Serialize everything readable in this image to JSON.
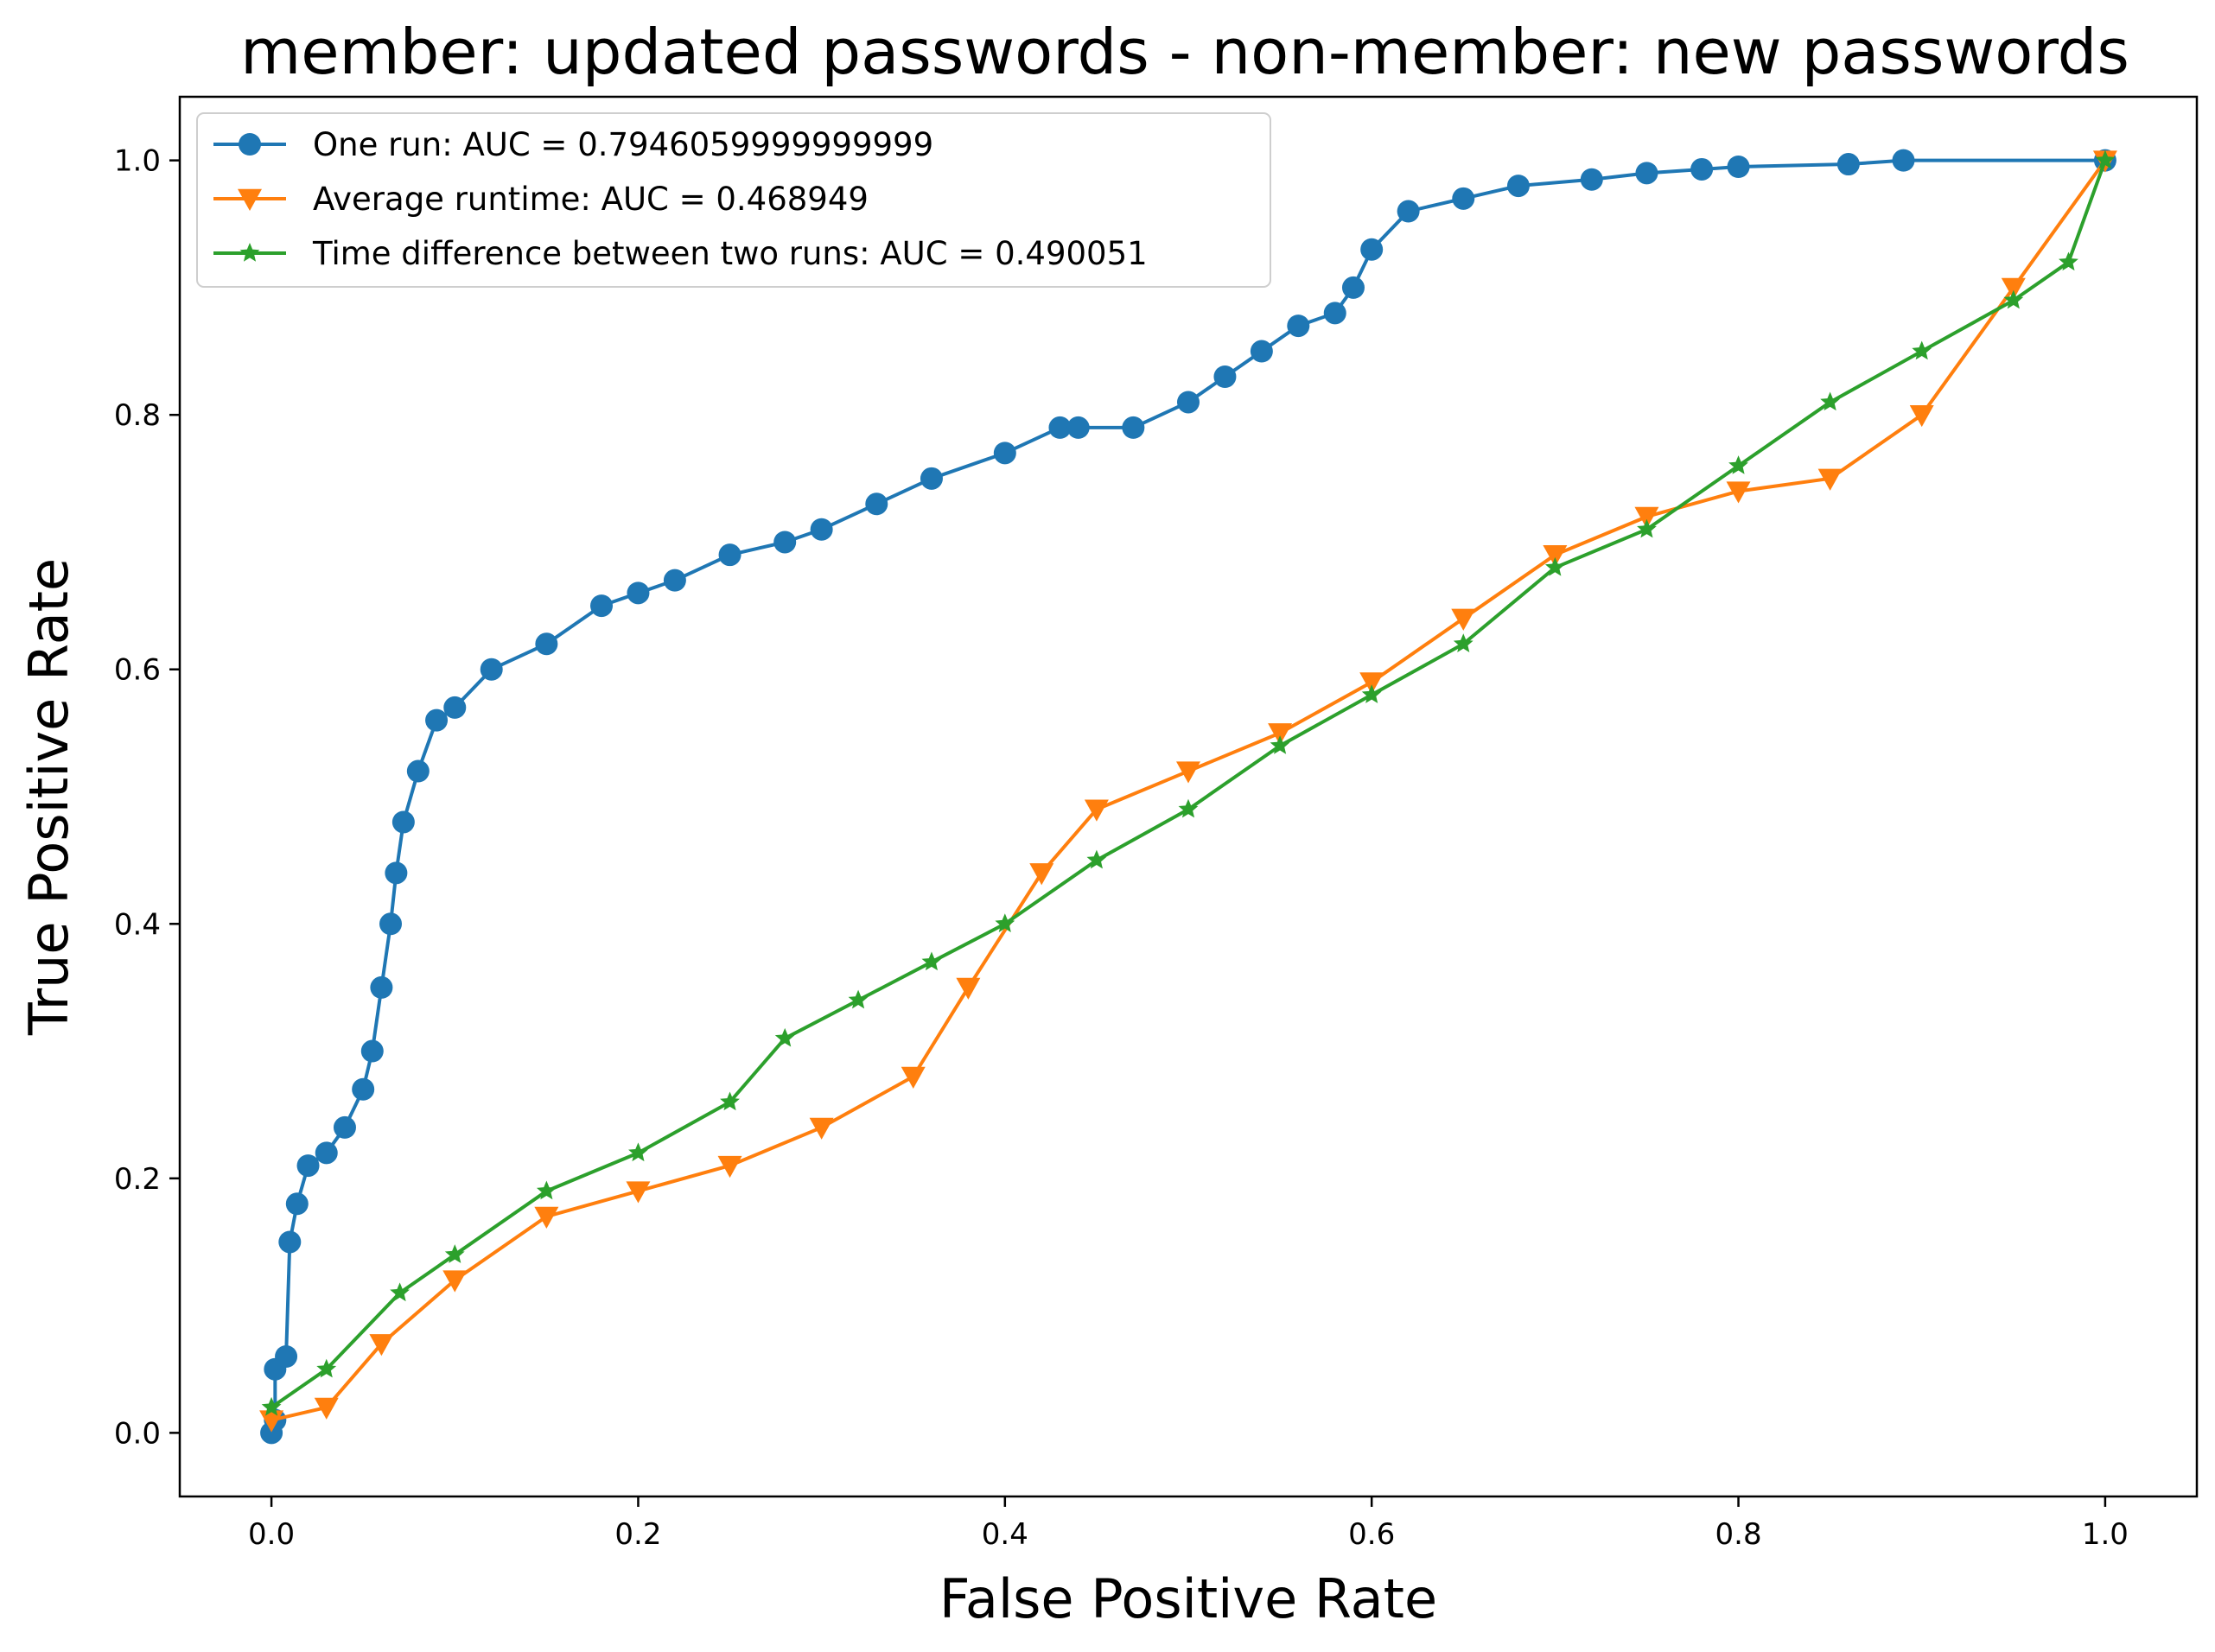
{
  "chart_data": {
    "type": "line",
    "title": "member: updated passwords - non-member: new passwords",
    "xlabel": "False Positive Rate",
    "ylabel": "True Positive Rate",
    "xlim": [
      -0.05,
      1.05
    ],
    "ylim": [
      -0.05,
      1.05
    ],
    "xticks": [
      0.0,
      0.2,
      0.4,
      0.6,
      0.8,
      1.0
    ],
    "xtick_labels": [
      "0.0",
      "0.2",
      "0.4",
      "0.6",
      "0.8",
      "1.0"
    ],
    "yticks": [
      0.0,
      0.2,
      0.4,
      0.6,
      0.8,
      1.0
    ],
    "ytick_labels": [
      "0.0",
      "0.2",
      "0.4",
      "0.6",
      "0.8",
      "1.0"
    ],
    "grid": false,
    "legend_position": "top-left",
    "series": [
      {
        "name": "One run: AUC = 0.7946059999999999",
        "color": "#1f77b4",
        "marker": "circle",
        "x": [
          0.0,
          0.002,
          0.002,
          0.008,
          0.01,
          0.014,
          0.02,
          0.03,
          0.04,
          0.05,
          0.055,
          0.06,
          0.065,
          0.068,
          0.072,
          0.08,
          0.09,
          0.1,
          0.12,
          0.15,
          0.18,
          0.2,
          0.22,
          0.25,
          0.28,
          0.3,
          0.33,
          0.36,
          0.4,
          0.43,
          0.44,
          0.47,
          0.5,
          0.52,
          0.54,
          0.56,
          0.58,
          0.59,
          0.6,
          0.62,
          0.65,
          0.68,
          0.72,
          0.75,
          0.78,
          0.8,
          0.86,
          0.89,
          1.0
        ],
        "y": [
          0.0,
          0.01,
          0.05,
          0.06,
          0.15,
          0.18,
          0.21,
          0.22,
          0.24,
          0.27,
          0.3,
          0.35,
          0.4,
          0.44,
          0.48,
          0.52,
          0.56,
          0.57,
          0.6,
          0.62,
          0.65,
          0.66,
          0.67,
          0.69,
          0.7,
          0.71,
          0.73,
          0.75,
          0.77,
          0.79,
          0.79,
          0.79,
          0.81,
          0.83,
          0.85,
          0.87,
          0.88,
          0.9,
          0.93,
          0.96,
          0.97,
          0.98,
          0.985,
          0.99,
          0.993,
          0.995,
          0.997,
          1.0,
          1.0
        ]
      },
      {
        "name": "Average runtime: AUC = 0.468949",
        "color": "#ff7f0e",
        "marker": "triangle-down",
        "x": [
          0.0,
          0.03,
          0.06,
          0.1,
          0.15,
          0.2,
          0.25,
          0.3,
          0.35,
          0.38,
          0.42,
          0.45,
          0.5,
          0.55,
          0.6,
          0.65,
          0.7,
          0.75,
          0.8,
          0.85,
          0.9,
          0.95,
          1.0
        ],
        "y": [
          0.01,
          0.02,
          0.07,
          0.12,
          0.17,
          0.19,
          0.21,
          0.24,
          0.28,
          0.35,
          0.44,
          0.49,
          0.52,
          0.55,
          0.59,
          0.64,
          0.69,
          0.72,
          0.74,
          0.75,
          0.8,
          0.9,
          1.0
        ]
      },
      {
        "name": "Time difference between two runs: AUC = 0.490051",
        "color": "#2ca02c",
        "marker": "star",
        "x": [
          0.0,
          0.03,
          0.07,
          0.1,
          0.15,
          0.2,
          0.25,
          0.28,
          0.32,
          0.36,
          0.4,
          0.45,
          0.5,
          0.55,
          0.6,
          0.65,
          0.7,
          0.75,
          0.8,
          0.85,
          0.9,
          0.95,
          0.98,
          1.0
        ],
        "y": [
          0.02,
          0.05,
          0.11,
          0.14,
          0.19,
          0.22,
          0.26,
          0.31,
          0.34,
          0.37,
          0.4,
          0.45,
          0.49,
          0.54,
          0.58,
          0.62,
          0.68,
          0.71,
          0.76,
          0.81,
          0.85,
          0.89,
          0.92,
          1.0
        ]
      }
    ]
  }
}
